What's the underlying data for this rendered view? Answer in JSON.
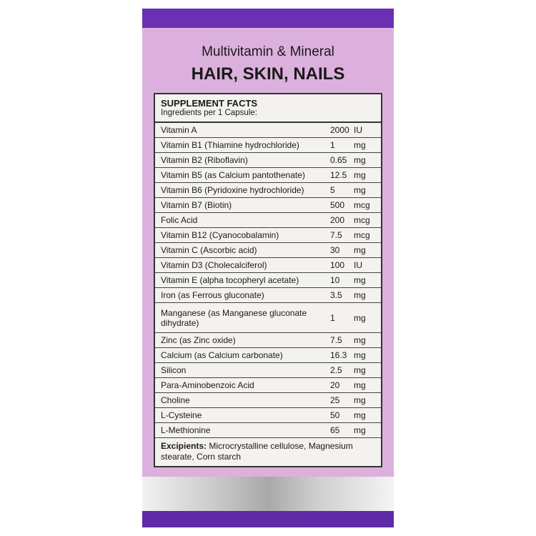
{
  "colors": {
    "top_bar": "#6a2fb2",
    "panel": "#dcb0dc",
    "bottom_bar": "#5f2aa6"
  },
  "title": "Multivitamin & Mineral",
  "subtitle": "HAIR, SKIN, NAILS",
  "facts": {
    "heading": "SUPPLEMENT FACTS",
    "serving": "Ingredients per 1 Capsule:",
    "rows": [
      {
        "name": "Vitamin A",
        "amount": "2000",
        "unit": "IU"
      },
      {
        "name": "Vitamin B1 (Thiamine hydrochloride)",
        "amount": "1",
        "unit": "mg"
      },
      {
        "name": "Vitamin B2 (Riboflavin)",
        "amount": "0.65",
        "unit": "mg"
      },
      {
        "name": "Vitamin B5 (as Calcium pantothenate)",
        "amount": "12.5",
        "unit": "mg"
      },
      {
        "name": "Vitamin B6 (Pyridoxine hydrochloride)",
        "amount": "5",
        "unit": "mg"
      },
      {
        "name": "Vitamin B7 (Biotin)",
        "amount": "500",
        "unit": "mcg"
      },
      {
        "name": "Folic Acid",
        "amount": "200",
        "unit": "mcg"
      },
      {
        "name": "Vitamin B12 (Cyanocobalamin)",
        "amount": "7.5",
        "unit": "mcg"
      },
      {
        "name": "Vitamin C (Ascorbic acid)",
        "amount": "30",
        "unit": "mg"
      },
      {
        "name": "Vitamin D3 (Cholecalciferol)",
        "amount": "100",
        "unit": "IU"
      },
      {
        "name": "Vitamin E (alpha tocopheryl acetate)",
        "amount": "10",
        "unit": "mg"
      },
      {
        "name": "Iron (as Ferrous gluconate)",
        "amount": "3.5",
        "unit": "mg"
      },
      {
        "name": "Manganese (as Manganese gluconate dihydrate)",
        "amount": "1",
        "unit": "mg"
      },
      {
        "name": "Zinc (as Zinc oxide)",
        "amount": "7.5",
        "unit": "mg"
      },
      {
        "name": "Calcium (as Calcium carbonate)",
        "amount": "16.3",
        "unit": "mg"
      },
      {
        "name": "Silicon",
        "amount": "2.5",
        "unit": "mg"
      },
      {
        "name": "Para-Aminobenzoic Acid",
        "amount": "20",
        "unit": "mg"
      },
      {
        "name": "Choline",
        "amount": "25",
        "unit": "mg"
      },
      {
        "name": "L-Cysteine",
        "amount": "50",
        "unit": "mg"
      },
      {
        "name": "L-Methionine",
        "amount": "65",
        "unit": "mg"
      }
    ],
    "excipients_label": "Excipients:",
    "excipients": " Microcrystalline cellulose, Magnesium stearate, Corn starch"
  }
}
